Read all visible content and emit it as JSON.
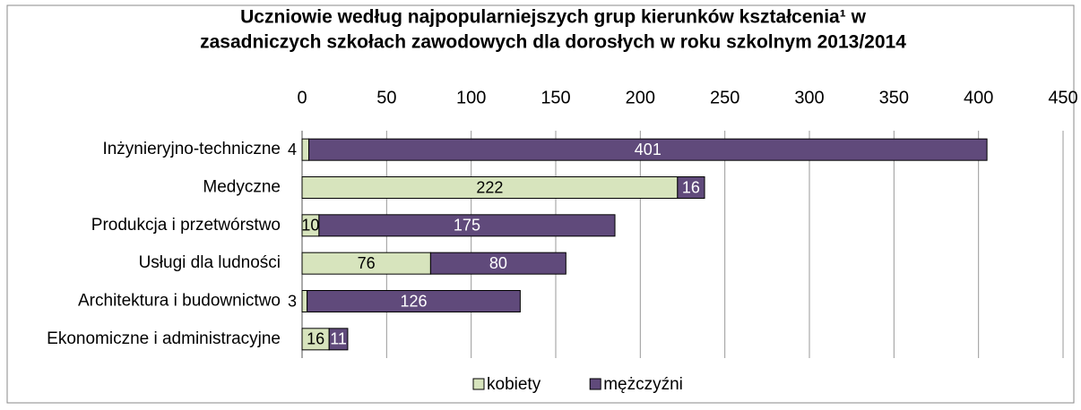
{
  "chart_data": {
    "type": "bar",
    "orientation": "horizontal",
    "stacked": true,
    "title": [
      "Uczniowie według najpopularniejszych grup kierunków kształcenia¹ w",
      "zasadniczych szkołach zawodowych dla dorosłych  w roku szkolnym 2013/2014"
    ],
    "categories": [
      "Inżynieryjno-techniczne",
      "Medyczne",
      "Produkcja i przetwórstwo",
      "Usługi dla ludności",
      "Architektura i budownictwo",
      "Ekonomiczne i administracyjne"
    ],
    "series": [
      {
        "name": "kobiety",
        "color": "#d7e4bd",
        "label_color": "#000000",
        "values": [
          4,
          222,
          10,
          76,
          3,
          16
        ]
      },
      {
        "name": "mężczyźni",
        "color": "#604a7b",
        "label_color": "#ffffff",
        "values": [
          401,
          16,
          175,
          80,
          126,
          11
        ]
      }
    ],
    "xlim": [
      0,
      450
    ],
    "xticks": [
      0,
      50,
      100,
      150,
      200,
      250,
      300,
      350,
      400,
      450
    ],
    "grid": true,
    "legend": "bottom"
  }
}
